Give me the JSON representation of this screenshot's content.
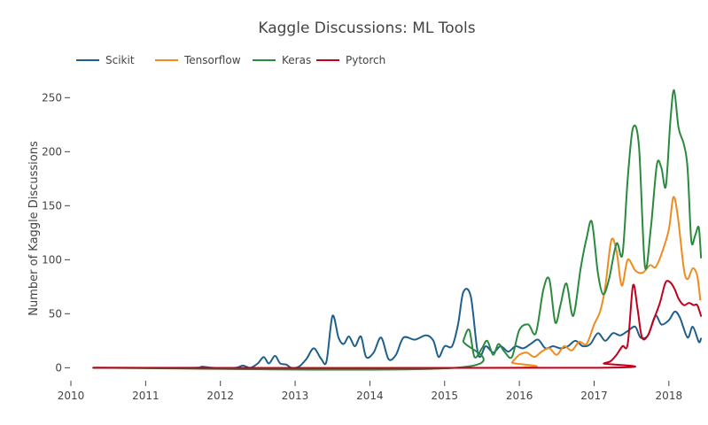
{
  "chart_data": {
    "type": "line",
    "title": "Kaggle Discussions: ML Tools",
    "xlabel": "",
    "ylabel": "Number of Kaggle Discussions",
    "xlim": [
      2010.0,
      2018.5
    ],
    "ylim": [
      -12,
      265
    ],
    "x_ticks": [
      "2010",
      "2011",
      "2012",
      "2013",
      "2014",
      "2015",
      "2016",
      "2017",
      "2018"
    ],
    "y_ticks": [
      0,
      50,
      100,
      150,
      200,
      250
    ],
    "legend_position": "top-left",
    "grid": false,
    "series": [
      {
        "name": "Scikit",
        "color": "#1f5f8b",
        "points": [
          [
            2010.3,
            0
          ],
          [
            2011.6,
            0
          ],
          [
            2011.75,
            1
          ],
          [
            2011.9,
            0
          ],
          [
            2012.2,
            0
          ],
          [
            2012.3,
            2
          ],
          [
            2012.4,
            0
          ],
          [
            2012.5,
            4
          ],
          [
            2012.58,
            10
          ],
          [
            2012.65,
            4
          ],
          [
            2012.73,
            11
          ],
          [
            2012.8,
            4
          ],
          [
            2012.88,
            3
          ],
          [
            2012.95,
            0
          ],
          [
            2013.05,
            1
          ],
          [
            2013.15,
            8
          ],
          [
            2013.25,
            18
          ],
          [
            2013.35,
            8
          ],
          [
            2013.42,
            6
          ],
          [
            2013.5,
            48
          ],
          [
            2013.58,
            28
          ],
          [
            2013.65,
            22
          ],
          [
            2013.72,
            29
          ],
          [
            2013.8,
            20
          ],
          [
            2013.88,
            29
          ],
          [
            2013.95,
            10
          ],
          [
            2014.05,
            14
          ],
          [
            2014.15,
            28
          ],
          [
            2014.25,
            8
          ],
          [
            2014.35,
            12
          ],
          [
            2014.45,
            28
          ],
          [
            2014.6,
            26
          ],
          [
            2014.75,
            30
          ],
          [
            2014.85,
            25
          ],
          [
            2014.92,
            10
          ],
          [
            2015.0,
            20
          ],
          [
            2015.1,
            20
          ],
          [
            2015.18,
            40
          ],
          [
            2015.25,
            70
          ],
          [
            2015.35,
            66
          ],
          [
            2015.45,
            12
          ],
          [
            2015.55,
            20
          ],
          [
            2015.65,
            14
          ],
          [
            2015.75,
            20
          ],
          [
            2015.85,
            15
          ],
          [
            2015.95,
            20
          ],
          [
            2016.05,
            18
          ],
          [
            2016.15,
            22
          ],
          [
            2016.25,
            26
          ],
          [
            2016.35,
            18
          ],
          [
            2016.45,
            20
          ],
          [
            2016.55,
            18
          ],
          [
            2016.65,
            20
          ],
          [
            2016.75,
            25
          ],
          [
            2016.85,
            20
          ],
          [
            2016.95,
            22
          ],
          [
            2017.05,
            32
          ],
          [
            2017.15,
            25
          ],
          [
            2017.25,
            32
          ],
          [
            2017.35,
            30
          ],
          [
            2017.45,
            34
          ],
          [
            2017.55,
            38
          ],
          [
            2017.62,
            28
          ],
          [
            2017.72,
            30
          ],
          [
            2017.82,
            48
          ],
          [
            2017.9,
            40
          ],
          [
            2018.0,
            44
          ],
          [
            2018.08,
            52
          ],
          [
            2018.15,
            46
          ],
          [
            2018.25,
            28
          ],
          [
            2018.32,
            38
          ],
          [
            2018.4,
            24
          ],
          [
            2018.43,
            27
          ]
        ]
      },
      {
        "name": "Tensorflow",
        "color": "#ee8c1e",
        "points": [
          [
            2010.3,
            0
          ],
          [
            2015.82,
            0
          ],
          [
            2015.9,
            5
          ],
          [
            2016.0,
            12
          ],
          [
            2016.1,
            14
          ],
          [
            2016.2,
            10
          ],
          [
            2016.3,
            15
          ],
          [
            2016.4,
            18
          ],
          [
            2016.5,
            12
          ],
          [
            2016.6,
            20
          ],
          [
            2016.7,
            16
          ],
          [
            2016.8,
            24
          ],
          [
            2016.9,
            22
          ],
          [
            2017.0,
            40
          ],
          [
            2017.08,
            52
          ],
          [
            2017.15,
            75
          ],
          [
            2017.23,
            118
          ],
          [
            2017.3,
            108
          ],
          [
            2017.37,
            76
          ],
          [
            2017.45,
            100
          ],
          [
            2017.55,
            90
          ],
          [
            2017.65,
            88
          ],
          [
            2017.75,
            95
          ],
          [
            2017.82,
            93
          ],
          [
            2017.9,
            105
          ],
          [
            2018.0,
            128
          ],
          [
            2018.06,
            158
          ],
          [
            2018.12,
            140
          ],
          [
            2018.2,
            92
          ],
          [
            2018.25,
            82
          ],
          [
            2018.32,
            92
          ],
          [
            2018.38,
            85
          ],
          [
            2018.42,
            63
          ]
        ]
      },
      {
        "name": "Keras",
        "color": "#2a8a3e",
        "points": [
          [
            2010.3,
            0
          ],
          [
            2015.15,
            0
          ],
          [
            2015.25,
            25
          ],
          [
            2015.33,
            35
          ],
          [
            2015.4,
            10
          ],
          [
            2015.5,
            18
          ],
          [
            2015.57,
            25
          ],
          [
            2015.65,
            12
          ],
          [
            2015.72,
            22
          ],
          [
            2015.8,
            15
          ],
          [
            2015.9,
            10
          ],
          [
            2016.0,
            35
          ],
          [
            2016.12,
            40
          ],
          [
            2016.22,
            32
          ],
          [
            2016.32,
            72
          ],
          [
            2016.4,
            82
          ],
          [
            2016.48,
            42
          ],
          [
            2016.55,
            58
          ],
          [
            2016.63,
            78
          ],
          [
            2016.72,
            48
          ],
          [
            2016.82,
            92
          ],
          [
            2016.9,
            120
          ],
          [
            2016.97,
            135
          ],
          [
            2017.05,
            88
          ],
          [
            2017.12,
            68
          ],
          [
            2017.2,
            82
          ],
          [
            2017.3,
            115
          ],
          [
            2017.38,
            105
          ],
          [
            2017.45,
            175
          ],
          [
            2017.52,
            222
          ],
          [
            2017.6,
            205
          ],
          [
            2017.68,
            94
          ],
          [
            2017.76,
            130
          ],
          [
            2017.84,
            188
          ],
          [
            2017.9,
            185
          ],
          [
            2017.96,
            168
          ],
          [
            2018.02,
            228
          ],
          [
            2018.07,
            257
          ],
          [
            2018.13,
            222
          ],
          [
            2018.2,
            207
          ],
          [
            2018.25,
            185
          ],
          [
            2018.3,
            118
          ],
          [
            2018.35,
            122
          ],
          [
            2018.4,
            130
          ],
          [
            2018.43,
            102
          ]
        ]
      },
      {
        "name": "Pytorch",
        "color": "#c0001c",
        "points": [
          [
            2010.3,
            0
          ],
          [
            2017.05,
            0
          ],
          [
            2017.13,
            4
          ],
          [
            2017.22,
            6
          ],
          [
            2017.3,
            12
          ],
          [
            2017.38,
            20
          ],
          [
            2017.45,
            22
          ],
          [
            2017.52,
            76
          ],
          [
            2017.58,
            55
          ],
          [
            2017.64,
            28
          ],
          [
            2017.72,
            30
          ],
          [
            2017.8,
            45
          ],
          [
            2017.88,
            60
          ],
          [
            2017.95,
            78
          ],
          [
            2018.0,
            80
          ],
          [
            2018.07,
            74
          ],
          [
            2018.13,
            64
          ],
          [
            2018.2,
            58
          ],
          [
            2018.27,
            60
          ],
          [
            2018.33,
            58
          ],
          [
            2018.38,
            58
          ],
          [
            2018.43,
            48
          ]
        ]
      }
    ]
  }
}
